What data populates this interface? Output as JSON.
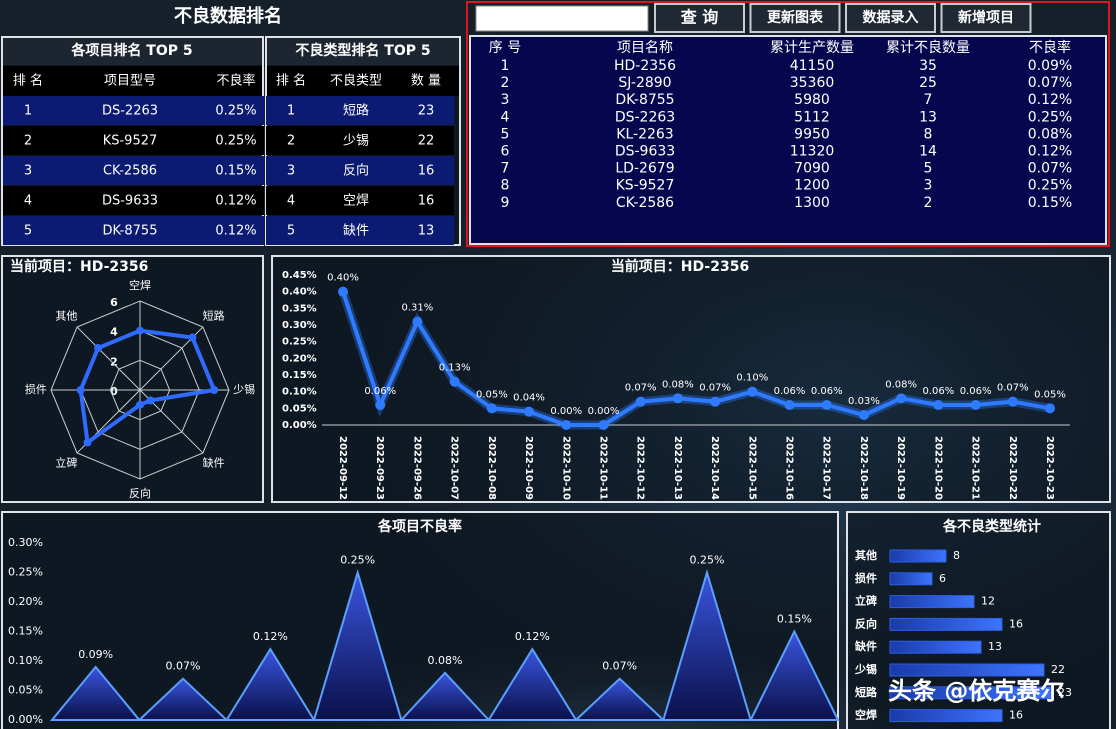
{
  "header": {
    "title": "不良数据排名"
  },
  "top_projects": {
    "title": "各项目排名 TOP 5",
    "columns": [
      "排 名",
      "项目型号",
      "不良率"
    ],
    "rows": [
      [
        1,
        "DS-2263",
        "0.25%"
      ],
      [
        2,
        "KS-9527",
        "0.25%"
      ],
      [
        3,
        "CK-2586",
        "0.15%"
      ],
      [
        4,
        "DS-9633",
        "0.12%"
      ],
      [
        5,
        "DK-8755",
        "0.12%"
      ]
    ]
  },
  "top_defects": {
    "title": "不良类型排名 TOP 5",
    "columns": [
      "排 名",
      "不良类型",
      "数 量"
    ],
    "rows": [
      [
        1,
        "短路",
        23
      ],
      [
        2,
        "少锡",
        22
      ],
      [
        3,
        "反向",
        16
      ],
      [
        4,
        "空焊",
        16
      ],
      [
        5,
        "缺件",
        13
      ]
    ]
  },
  "toolbar": {
    "buttons": [
      "查 询",
      "更新图表",
      "数据录入",
      "新增项目"
    ]
  },
  "project_table": {
    "columns": [
      "序 号",
      "项目名称",
      "累计生产数量",
      "累计不良数量",
      "不良率"
    ],
    "rows": [
      [
        1,
        "HD-2356",
        41150,
        35,
        "0.09%"
      ],
      [
        2,
        "SJ-2890",
        35360,
        25,
        "0.07%"
      ],
      [
        3,
        "DK-8755",
        5980,
        7,
        "0.12%"
      ],
      [
        4,
        "DS-2263",
        5112,
        13,
        "0.25%"
      ],
      [
        5,
        "KL-2263",
        9950,
        8,
        "0.08%"
      ],
      [
        6,
        "DS-9633",
        11320,
        14,
        "0.12%"
      ],
      [
        7,
        "LD-2679",
        7090,
        5,
        "0.07%"
      ],
      [
        8,
        "KS-9527",
        1200,
        3,
        "0.25%"
      ],
      [
        9,
        "CK-2586",
        1300,
        2,
        "0.15%"
      ]
    ]
  },
  "chart_data": [
    {
      "type": "radar",
      "title": "当前项目：HD-2356",
      "categories": [
        "空焊",
        "短路",
        "少锡",
        "缺件",
        "反向",
        "立碑",
        "损件",
        "其他"
      ],
      "values": [
        4,
        5,
        5,
        1,
        1,
        5,
        4,
        4
      ],
      "rlim": [
        0,
        6
      ],
      "rticks": [
        0,
        2,
        4,
        6
      ],
      "color": "#2f6bff"
    },
    {
      "type": "line",
      "title": "当前项目：HD-2356",
      "categories": [
        "2022-09-12",
        "2022-09-23",
        "2022-09-26",
        "2022-10-07",
        "2022-10-08",
        "2022-10-09",
        "2022-10-10",
        "2022-10-11",
        "2022-10-12",
        "2022-10-13",
        "2022-10-14",
        "2022-10-15",
        "2022-10-16",
        "2022-10-17",
        "2022-10-18",
        "2022-10-19",
        "2022-10-20",
        "2022-10-21",
        "2022-10-22",
        "2022-10-23"
      ],
      "values": [
        0.4,
        0.06,
        0.31,
        0.13,
        0.05,
        0.04,
        0.0,
        0.0,
        0.07,
        0.08,
        0.07,
        0.1,
        0.06,
        0.06,
        0.03,
        0.08,
        0.06,
        0.06,
        0.07,
        0.05
      ],
      "value_labels": [
        "0.40%",
        "0.06%",
        "0.31%",
        "0.13%",
        "0.05%",
        "0.04%",
        "0.00%",
        "0.00%",
        "0.07%",
        "0.08%",
        "0.07%",
        "0.10%",
        "0.06%",
        "0.06%",
        "0.03%",
        "0.08%",
        "0.06%",
        "0.06%",
        "0.07%",
        "0.05%"
      ],
      "ylim": [
        0,
        0.45
      ],
      "yticks": [
        {
          "value": 0,
          "label": "0.00%"
        },
        {
          "value": 0.05,
          "label": "0.05%"
        },
        {
          "value": 0.1,
          "label": "0.10%"
        },
        {
          "value": 0.15,
          "label": "0.15%"
        },
        {
          "value": 0.2,
          "label": "0.20%"
        },
        {
          "value": 0.25,
          "label": "0.25%"
        },
        {
          "value": 0.3,
          "label": "0.30%"
        },
        {
          "value": 0.35,
          "label": "0.35%"
        },
        {
          "value": 0.4,
          "label": "0.40%"
        },
        {
          "value": 0.45,
          "label": "0.45%"
        }
      ],
      "color": "#2f7bff"
    },
    {
      "type": "area",
      "title": "各项目不良率",
      "categories": [
        null,
        null,
        null,
        null,
        null,
        null,
        null,
        null,
        null
      ],
      "values": [
        0.09,
        0.07,
        0.12,
        0.25,
        0.08,
        0.12,
        0.07,
        0.25,
        0.15
      ],
      "value_labels": [
        "0.09%",
        "0.07%",
        "0.12%",
        "0.25%",
        "0.08%",
        "0.12%",
        "0.07%",
        "0.25%",
        "0.15%"
      ],
      "ylim": [
        0,
        0.3
      ],
      "yticks": [
        {
          "value": 0,
          "label": "0.00%"
        },
        {
          "value": 0.05,
          "label": "0.05%"
        },
        {
          "value": 0.1,
          "label": "0.10%"
        },
        {
          "value": 0.15,
          "label": "0.15%"
        },
        {
          "value": 0.2,
          "label": "0.20%"
        },
        {
          "value": 0.25,
          "label": "0.25%"
        },
        {
          "value": 0.3,
          "label": "0.30%"
        }
      ],
      "color": "#2535b0"
    },
    {
      "type": "hbar",
      "title": "各不良类型统计",
      "categories": [
        "其他",
        "损件",
        "立碑",
        "反向",
        "缺件",
        "少锡",
        "短路",
        "空焊"
      ],
      "values": [
        8,
        6,
        12,
        16,
        13,
        22,
        23,
        16
      ],
      "xlim": [
        0,
        30
      ],
      "color": "#2d5fe0"
    }
  ],
  "watermark": "头条 @依克赛尔"
}
